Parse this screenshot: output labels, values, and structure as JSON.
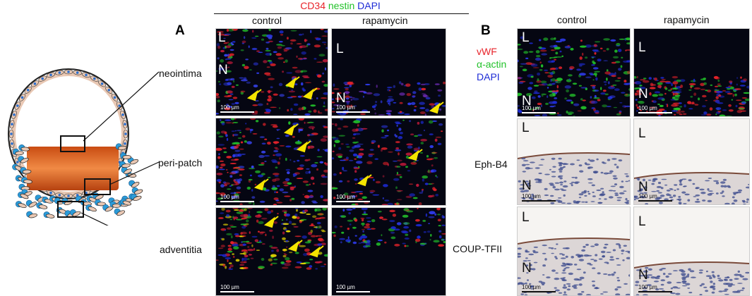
{
  "panelA": {
    "letter": "A",
    "stain_parts": [
      {
        "text": "CD34",
        "color": "#e8232a"
      },
      {
        "text": "nestin",
        "color": "#22c22a"
      },
      {
        "text": "DAPI",
        "color": "#1d2bd6"
      }
    ],
    "col_control": "control",
    "col_rapamycin": "rapamycin",
    "region_labels": [
      "neointima",
      "peri-patch",
      "adventitia"
    ]
  },
  "panelB": {
    "letter": "B",
    "col_control": "control",
    "col_rapamycin": "rapamycin",
    "legend": [
      {
        "text": "vWF",
        "color": "#e8232a"
      },
      {
        "text": "α-actin",
        "color": "#22c22a"
      },
      {
        "text": "DAPI",
        "color": "#1d2bd6"
      }
    ],
    "row_labels": [
      "Eph-B4",
      "COUP-TFII"
    ]
  },
  "image_letters": {
    "L": "L",
    "N": "N"
  },
  "scale_bar": "100 µm",
  "colors": {
    "red": "#e8232a",
    "green": "#22c22a",
    "blue": "#1d2bd6",
    "yellow": "#f5e400",
    "patch": "#e06a2a",
    "cell_blue": "#2b9bd8",
    "cell_tan": "#e9c8b4"
  }
}
